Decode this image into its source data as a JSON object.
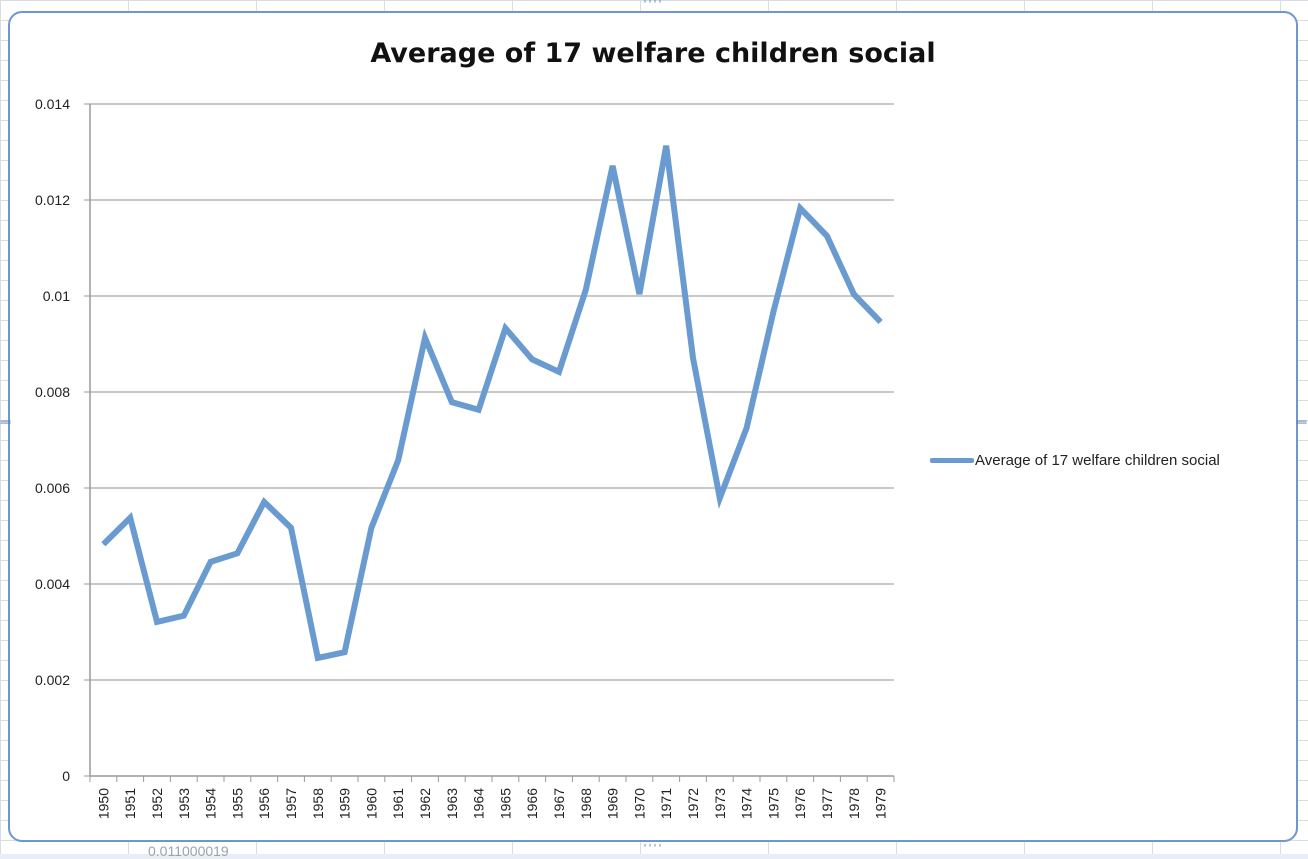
{
  "sheet": {
    "partial_cell_text": "0.011000019"
  },
  "chart_data": {
    "type": "line",
    "title": "Average of 17 welfare children social",
    "xlabel": "",
    "ylabel": "",
    "categories": [
      "1950",
      "1951",
      "1952",
      "1953",
      "1954",
      "1955",
      "1956",
      "1957",
      "1958",
      "1959",
      "1960",
      "1961",
      "1962",
      "1963",
      "1964",
      "1965",
      "1966",
      "1967",
      "1968",
      "1969",
      "1970",
      "1971",
      "1972",
      "1973",
      "1974",
      "1975",
      "1976",
      "1977",
      "1978",
      "1979"
    ],
    "series": [
      {
        "name": "Average of 17 welfare children social",
        "color": "#6a9bd0",
        "values": [
          0.00483,
          0.00538,
          0.00321,
          0.00334,
          0.00446,
          0.00464,
          0.00571,
          0.00517,
          0.00246,
          0.00258,
          0.00517,
          0.00658,
          0.00913,
          0.00779,
          0.00763,
          0.00933,
          0.00868,
          0.00842,
          0.01013,
          0.01271,
          0.01004,
          0.01313,
          0.00871,
          0.00579,
          0.00725,
          0.00967,
          0.01183,
          0.01125,
          0.01004,
          0.00946
        ]
      }
    ],
    "ylim": [
      0,
      0.014
    ],
    "yticks": [
      "0",
      "0.002",
      "0.004",
      "0.006",
      "0.008",
      "0.01",
      "0.012",
      "0.014"
    ],
    "grid": true,
    "legend_position": "right"
  }
}
